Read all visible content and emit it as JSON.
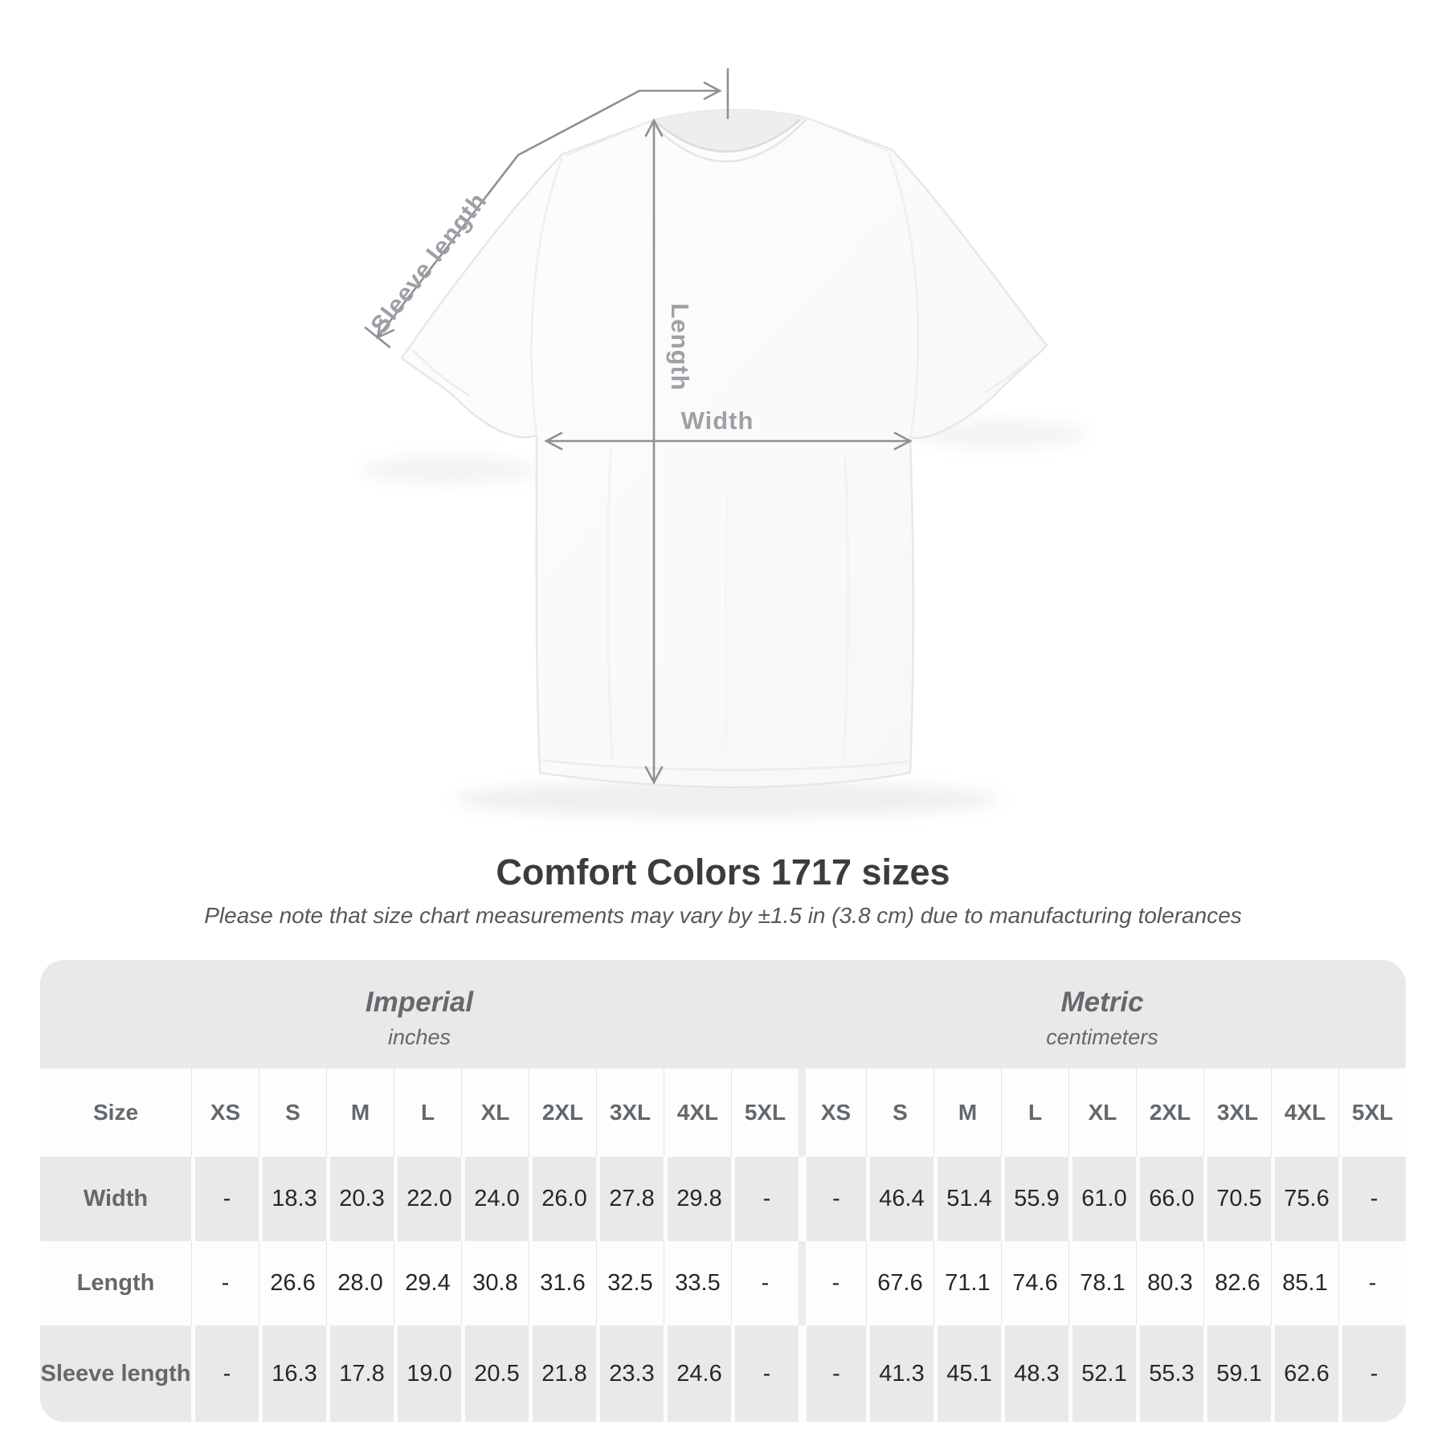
{
  "diagram": {
    "labels": {
      "sleeve_length": "Sleeve length",
      "length": "Length",
      "width": "Width"
    },
    "line_color": "#8d9094",
    "label_color": "#9da0a4"
  },
  "heading": {
    "title": "Comfort Colors 1717 sizes",
    "subtitle": "Please note that size chart measurements may vary by ±1.5 in (3.8 cm) due to manufacturing tolerances"
  },
  "size_table": {
    "size_col_header": "Size",
    "groups": [
      {
        "label": "Imperial",
        "unit": "inches"
      },
      {
        "label": "Metric",
        "unit": "centimeters"
      }
    ],
    "sizes": [
      "XS",
      "S",
      "M",
      "L",
      "XL",
      "2XL",
      "3XL",
      "4XL",
      "5XL"
    ],
    "rows": [
      {
        "label": "Width",
        "imperial": [
          "-",
          "18.3",
          "20.3",
          "22.0",
          "24.0",
          "26.0",
          "27.8",
          "29.8",
          "-"
        ],
        "metric": [
          "-",
          "46.4",
          "51.4",
          "55.9",
          "61.0",
          "66.0",
          "70.5",
          "75.6",
          "-"
        ]
      },
      {
        "label": "Length",
        "imperial": [
          "-",
          "26.6",
          "28.0",
          "29.4",
          "30.8",
          "31.6",
          "32.5",
          "33.5",
          "-"
        ],
        "metric": [
          "-",
          "67.6",
          "71.1",
          "74.6",
          "78.1",
          "80.3",
          "82.6",
          "85.1",
          "-"
        ]
      },
      {
        "label": "Sleeve length",
        "imperial": [
          "-",
          "16.3",
          "17.8",
          "19.0",
          "20.5",
          "21.8",
          "23.3",
          "24.6",
          "-"
        ],
        "metric": [
          "-",
          "41.3",
          "45.1",
          "48.3",
          "52.1",
          "55.3",
          "59.1",
          "62.6",
          "-"
        ]
      }
    ],
    "colors": {
      "container": "#e9e9e9",
      "row_white": "#fdfdfd",
      "row_gray": "#e9e9e9",
      "header_text": "#63686c",
      "value_text": "#25282b"
    }
  }
}
